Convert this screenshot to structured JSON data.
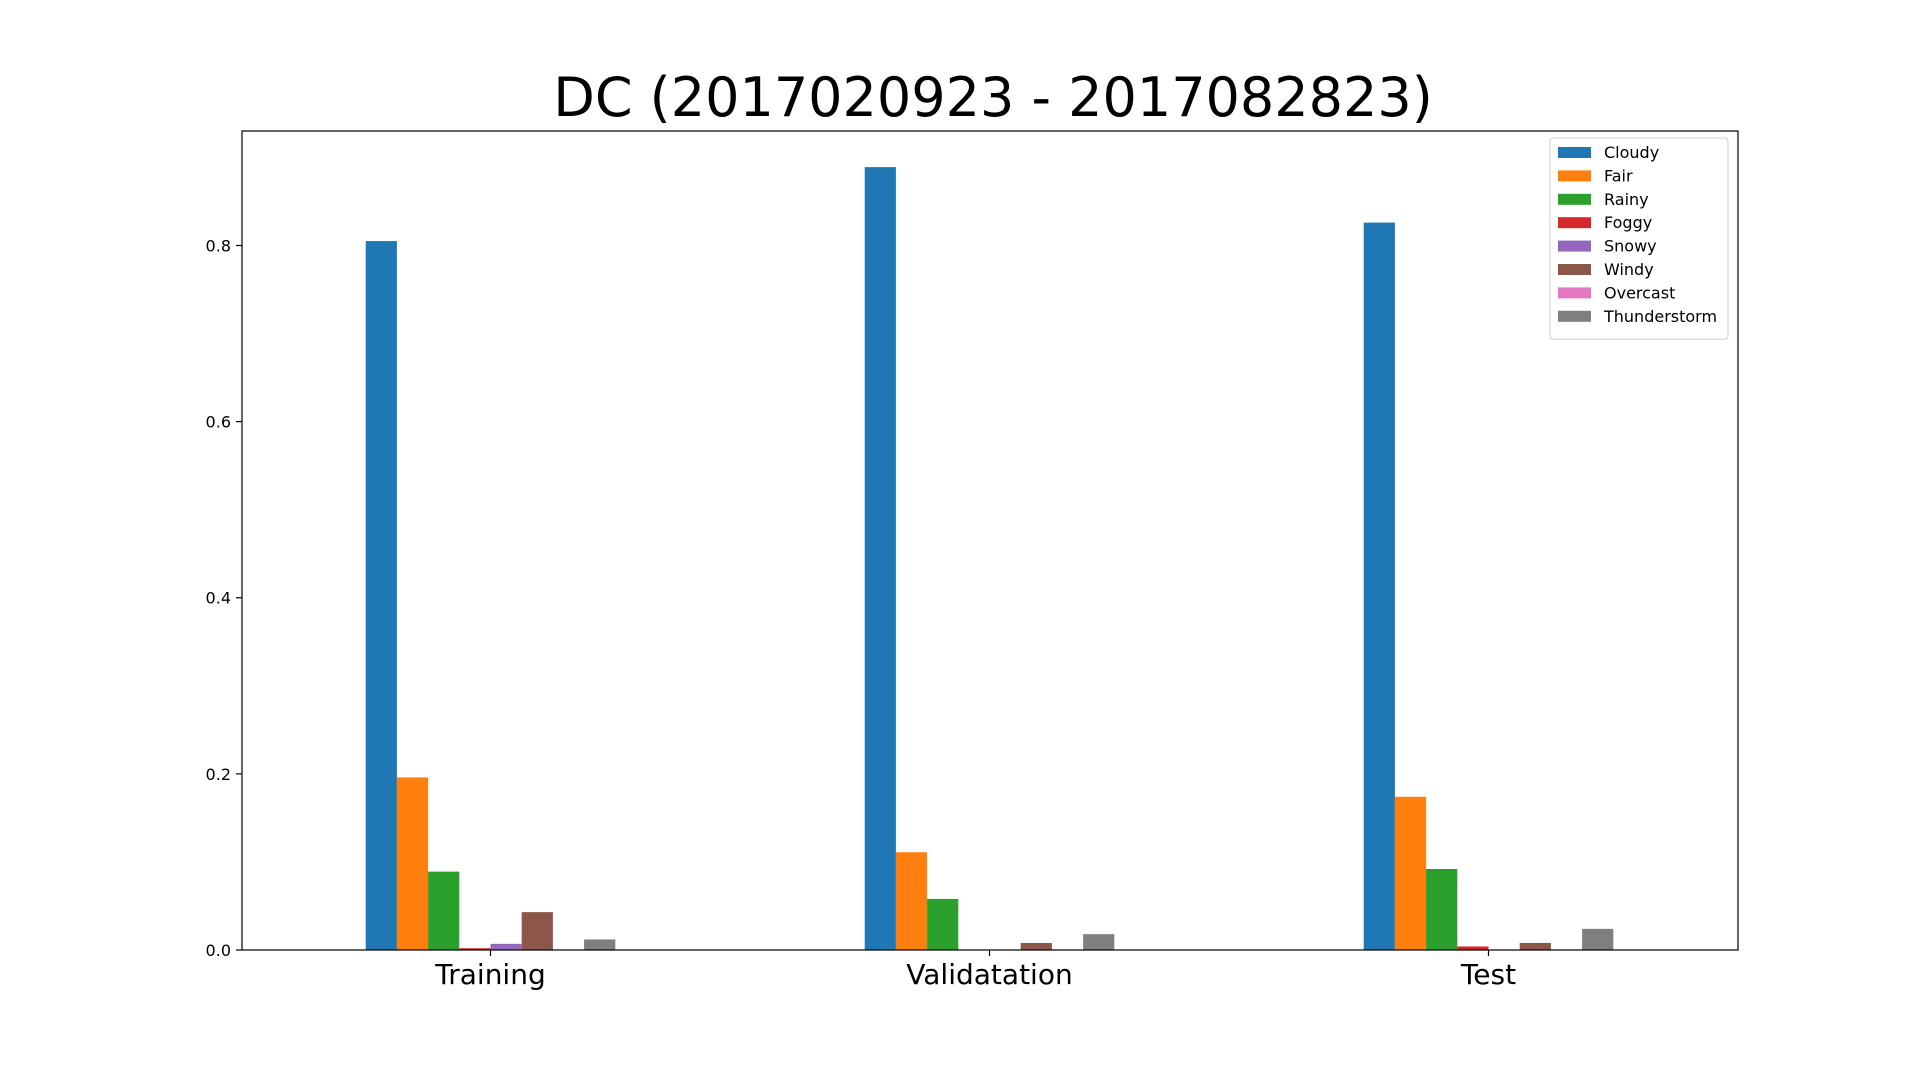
{
  "chart_data": {
    "type": "bar",
    "title": "DC (2017020923 - 2017082823)",
    "xlabel": "",
    "ylabel": "",
    "categories": [
      "Training",
      "Validatation",
      "Test"
    ],
    "ylim": [
      0,
      0.93
    ],
    "yticks": [
      0.0,
      0.2,
      0.4,
      0.6,
      0.8
    ],
    "ytick_labels": [
      "0.0",
      "0.2",
      "0.4",
      "0.6",
      "0.8"
    ],
    "grid": false,
    "legend_position": "top-right",
    "series": [
      {
        "name": "Cloudy",
        "color": "#1f77b4",
        "values": [
          0.805,
          0.889,
          0.826
        ]
      },
      {
        "name": "Fair",
        "color": "#ff7f0e",
        "values": [
          0.196,
          0.111,
          0.174
        ]
      },
      {
        "name": "Rainy",
        "color": "#2ca02c",
        "values": [
          0.089,
          0.058,
          0.092
        ]
      },
      {
        "name": "Foggy",
        "color": "#d62728",
        "values": [
          0.002,
          0.0,
          0.004
        ]
      },
      {
        "name": "Snowy",
        "color": "#9467bd",
        "values": [
          0.007,
          0.0,
          0.0
        ]
      },
      {
        "name": "Windy",
        "color": "#8c564b",
        "values": [
          0.043,
          0.008,
          0.008
        ]
      },
      {
        "name": "Overcast",
        "color": "#e377c2",
        "values": [
          0.0,
          0.0,
          0.0
        ]
      },
      {
        "name": "Thunderstorm",
        "color": "#7f7f7f",
        "values": [
          0.012,
          0.018,
          0.024
        ]
      }
    ]
  }
}
